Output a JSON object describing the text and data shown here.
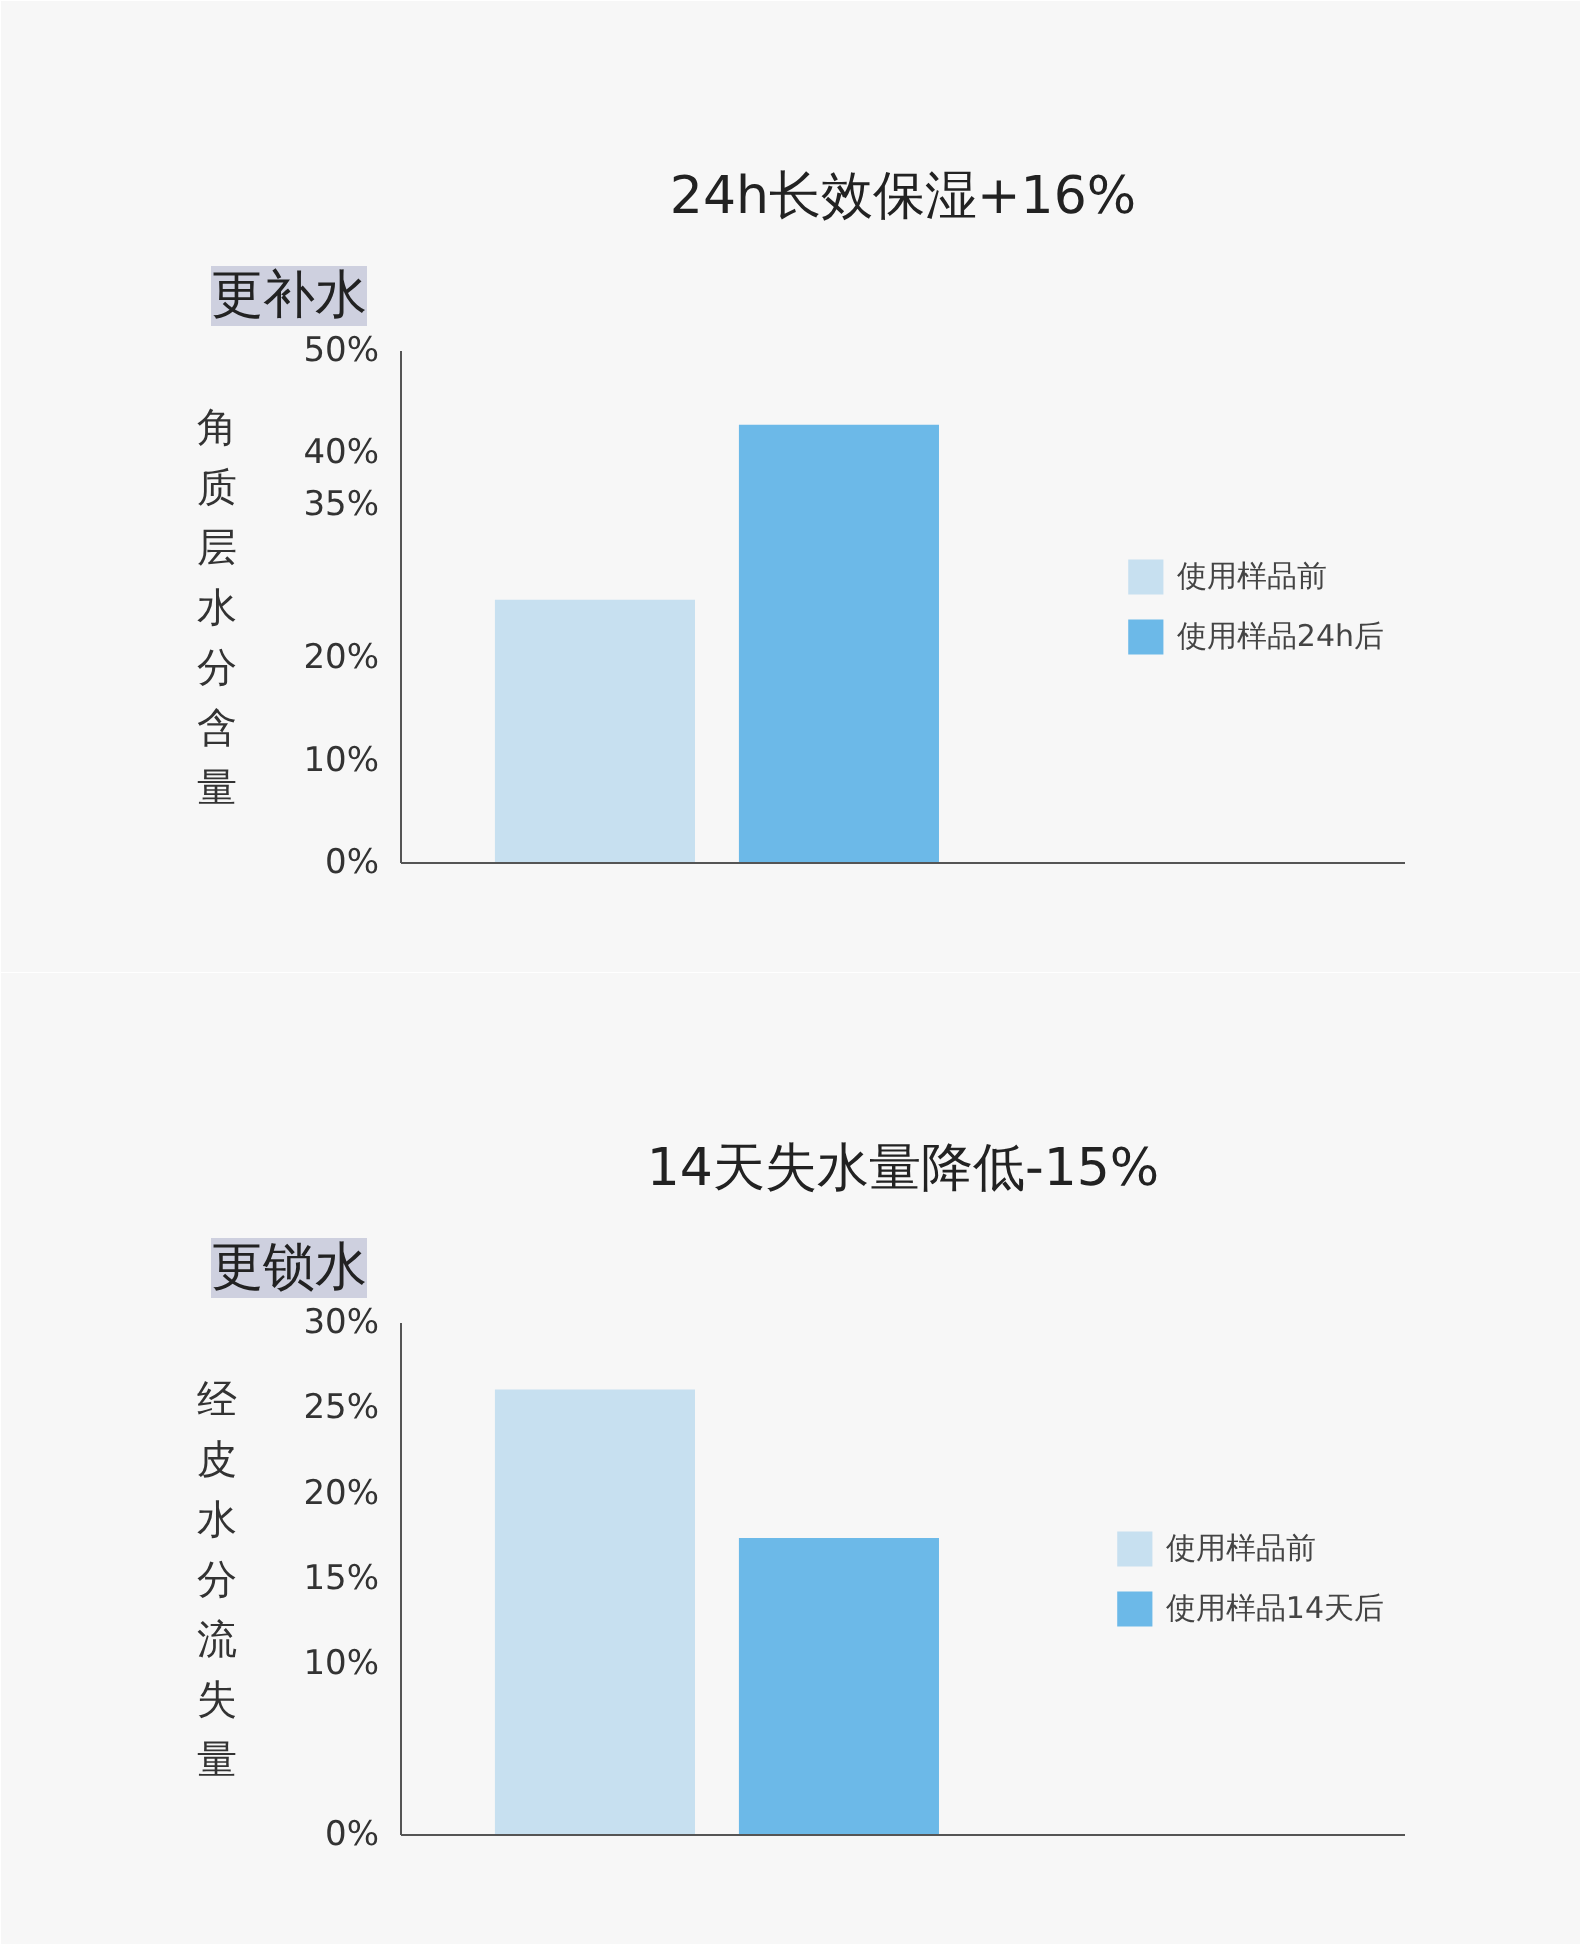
{
  "chart_data": [
    {
      "type": "bar",
      "title": "24h长效保湿+16%",
      "ylabel": "角质层水分含量",
      "annotations": [
        "更补水"
      ],
      "categories": [
        null,
        null,
        null,
        null
      ],
      "series": [
        {
          "name": "使用样品前",
          "color": "#c7e0f0",
          "values": [
            25.7,
            null,
            null,
            null
          ]
        },
        {
          "name": "使用样品24h后",
          "color": "#6cb9e8",
          "values": [
            null,
            42.8,
            null,
            null
          ]
        }
      ],
      "ylim": [
        0,
        50
      ],
      "yticks": [
        {
          "value": 0,
          "label": "0%"
        },
        {
          "value": 10,
          "label": "10%"
        },
        {
          "value": 20,
          "label": "20%"
        },
        {
          "value": 35,
          "label": "35%"
        },
        {
          "value": 40,
          "label": "40%"
        },
        {
          "value": 50,
          "label": "50%"
        }
      ],
      "grid": false,
      "legend": "right"
    },
    {
      "type": "bar",
      "title": "14天失水量降低-15%",
      "ylabel": "经皮水分流失量",
      "annotations": [
        "更锁水"
      ],
      "categories": [
        null,
        null,
        null,
        null
      ],
      "series": [
        {
          "name": "使用样品前",
          "color": "#c7e0f0",
          "values": [
            26.1,
            null,
            null,
            null
          ]
        },
        {
          "name": "使用样品14天后",
          "color": "#6cb9e8",
          "values": [
            null,
            17.4,
            null,
            null
          ]
        }
      ],
      "ylim": [
        0,
        30
      ],
      "yticks": [
        {
          "value": 0,
          "label": "0%"
        },
        {
          "value": 10,
          "label": "10%"
        },
        {
          "value": 15,
          "label": "15%"
        },
        {
          "value": 20,
          "label": "20%"
        },
        {
          "value": 25,
          "label": "25%"
        },
        {
          "value": 30,
          "label": "30%"
        }
      ],
      "grid": false,
      "legend": "right"
    }
  ]
}
